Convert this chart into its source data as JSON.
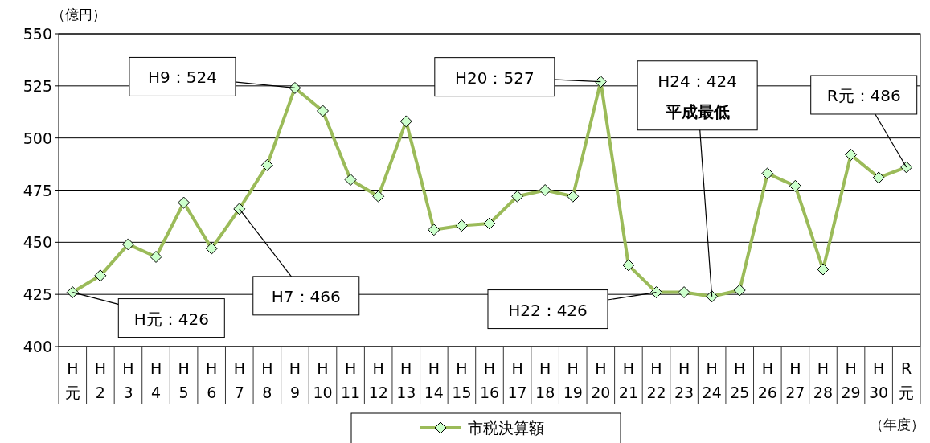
{
  "chart_data": {
    "type": "line",
    "ylabel": "（億円）",
    "xlabel": "（年度）",
    "categories": [
      "H元",
      "H2",
      "H3",
      "H4",
      "H5",
      "H6",
      "H7",
      "H8",
      "H9",
      "H10",
      "H11",
      "H12",
      "H13",
      "H14",
      "H15",
      "H16",
      "H17",
      "H18",
      "H19",
      "H20",
      "H21",
      "H22",
      "H23",
      "H24",
      "H25",
      "H26",
      "H27",
      "H28",
      "H29",
      "H30",
      "R元"
    ],
    "series": [
      {
        "name": "市税決算額",
        "color": "#9bbb59",
        "values": [
          426,
          434,
          449,
          443,
          469,
          447,
          466,
          487,
          524,
          513,
          480,
          472,
          508,
          456,
          458,
          459,
          472,
          475,
          472,
          527,
          439,
          426,
          426,
          424,
          427,
          483,
          477,
          437,
          492,
          481,
          486
        ]
      }
    ],
    "ylim": [
      400,
      550
    ],
    "yticks": [
      400,
      425,
      450,
      475,
      500,
      525,
      550
    ],
    "grid": "y",
    "legend": "bottom",
    "marker": "diamond",
    "line_style": "solid",
    "annotations": [
      {
        "text": "H元：426",
        "x": "H元",
        "y": 426
      },
      {
        "text": "H7：466",
        "x": "H7",
        "y": 466
      },
      {
        "text": "H9：524",
        "x": "H9",
        "y": 524
      },
      {
        "text": "H20：527",
        "x": "H20",
        "y": 527
      },
      {
        "text": "H22：426",
        "x": "H22",
        "y": 426
      },
      {
        "text": "H24：424\n平成最低",
        "x": "H24",
        "y": 424
      },
      {
        "text": "R元：486",
        "x": "R元",
        "y": 486
      }
    ]
  }
}
